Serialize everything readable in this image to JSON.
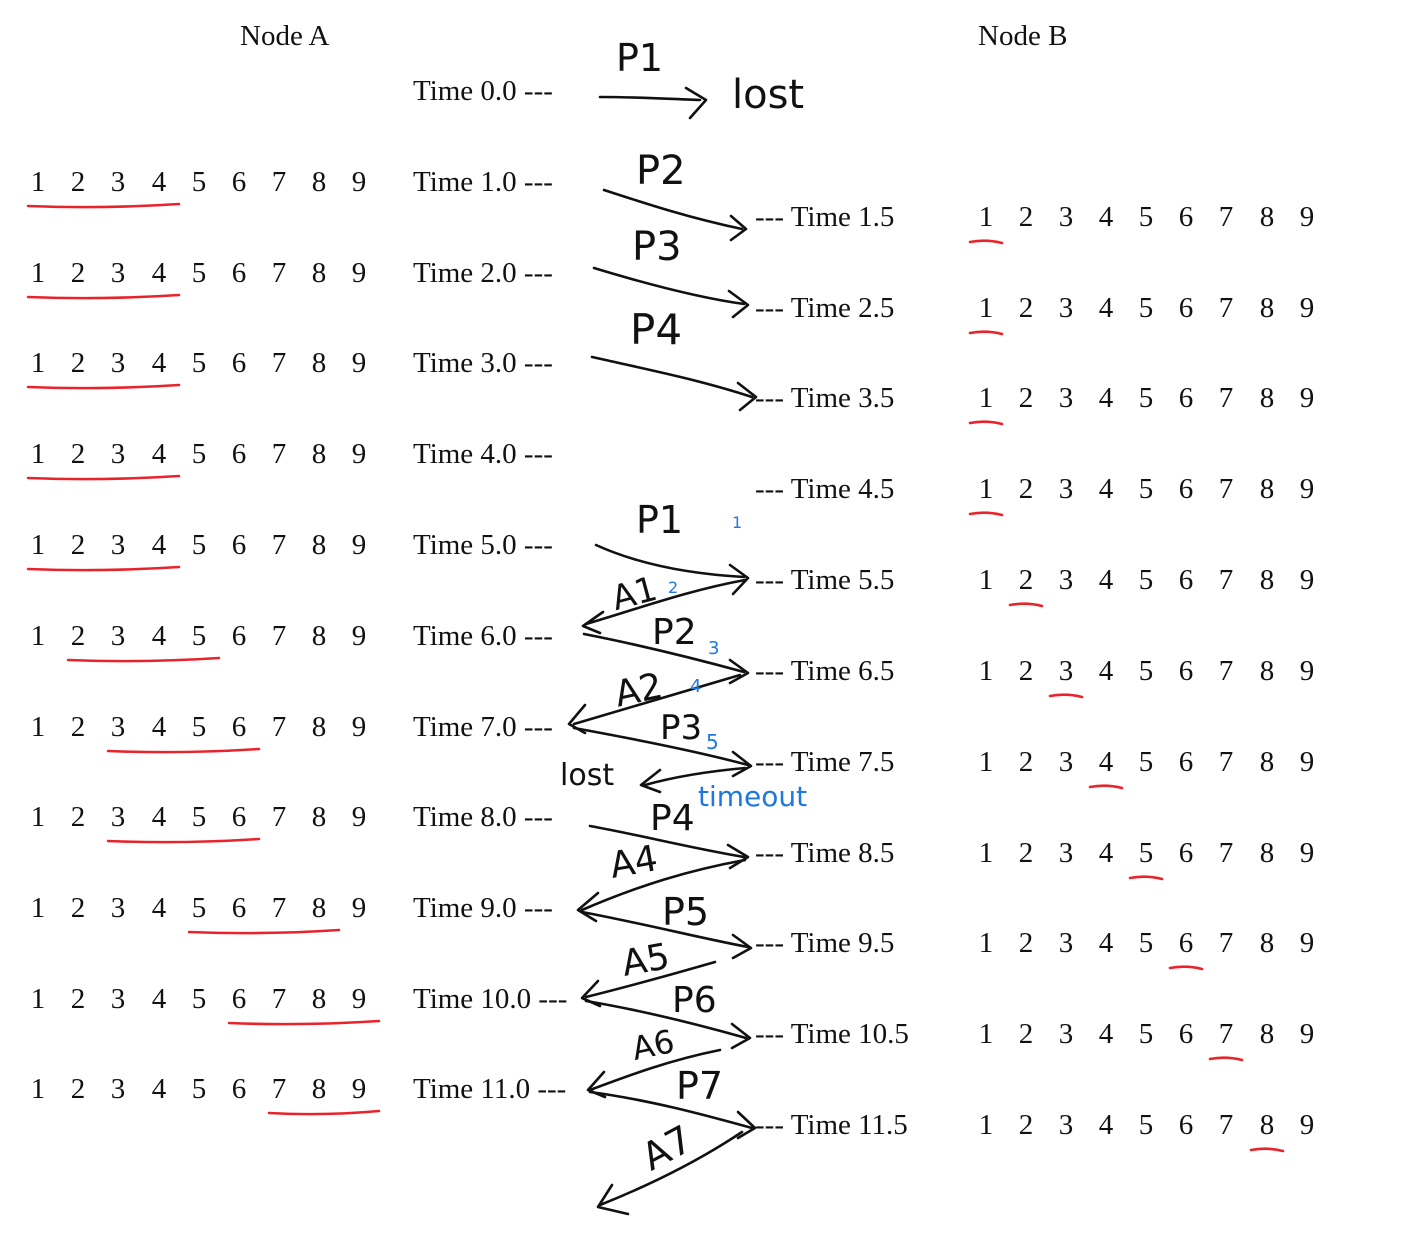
{
  "headers": {
    "node_a": "Node A",
    "node_b": "Node B"
  },
  "sequence_numbers": [
    "1",
    "2",
    "3",
    "4",
    "5",
    "6",
    "7",
    "8",
    "9"
  ],
  "left_times": [
    "Time 0.0 ---",
    "Time 1.0 ---",
    "Time 2.0 ---",
    "Time 3.0 ---",
    "Time 4.0 ---",
    "Time 5.0 ---",
    "Time 6.0 ---",
    "Time 7.0 ---",
    "Time 8.0 ---",
    "Time 9.0 ---",
    "Time 10.0 ---",
    "Time 11.0 ---"
  ],
  "right_times": [
    "--- Time 1.5",
    "--- Time 2.5",
    "--- Time 3.5",
    "--- Time 4.5",
    "--- Time 5.5",
    "--- Time 6.5",
    "--- Time 7.5",
    "--- Time 8.5",
    "--- Time 9.5",
    "--- Time 10.5",
    "--- Time 11.5"
  ],
  "node_a_windows": [
    {
      "time": "1.0",
      "window": [
        1,
        4
      ]
    },
    {
      "time": "2.0",
      "window": [
        1,
        4
      ]
    },
    {
      "time": "3.0",
      "window": [
        1,
        4
      ]
    },
    {
      "time": "4.0",
      "window": [
        1,
        4
      ]
    },
    {
      "time": "5.0",
      "window": [
        1,
        4
      ]
    },
    {
      "time": "6.0",
      "window": [
        2,
        5
      ]
    },
    {
      "time": "7.0",
      "window": [
        3,
        6
      ]
    },
    {
      "time": "8.0",
      "window": [
        3,
        6
      ]
    },
    {
      "time": "9.0",
      "window": [
        5,
        8
      ]
    },
    {
      "time": "10.0",
      "window": [
        6,
        9
      ]
    },
    {
      "time": "11.0",
      "window": [
        7,
        9
      ]
    }
  ],
  "node_b_expected": [
    {
      "time": "1.5",
      "expected": 1
    },
    {
      "time": "2.5",
      "expected": 1
    },
    {
      "time": "3.5",
      "expected": 1
    },
    {
      "time": "4.5",
      "expected": 1
    },
    {
      "time": "5.5",
      "expected": 2
    },
    {
      "time": "6.5",
      "expected": 3
    },
    {
      "time": "7.5",
      "expected": 4
    },
    {
      "time": "8.5",
      "expected": 5
    },
    {
      "time": "9.5",
      "expected": 6
    },
    {
      "time": "10.5",
      "expected": 7
    },
    {
      "time": "11.5",
      "expected": 8
    }
  ],
  "annotations": {
    "p1_first": "P1",
    "lost_first": "lost",
    "p2_first": "P2",
    "p3_first": "P3",
    "p4_first": "P4",
    "p1_retx": "P1",
    "a1": "A1",
    "p2_retx": "P2",
    "a2": "A2",
    "p3_retx": "P3",
    "lost_second": "lost",
    "timeout": "timeout",
    "p4_retx": "P4",
    "a4": "A4",
    "p5": "P5",
    "a5": "A5",
    "p6": "P6",
    "a6": "A6",
    "p7": "P7",
    "a7": "A7",
    "blue_1": "1",
    "blue_2": "2",
    "blue_3": "3",
    "blue_4": "4",
    "blue_5": "5"
  },
  "colors": {
    "underline": "#e8232c",
    "blue": "#1e78e0",
    "arrow": "#111111"
  }
}
